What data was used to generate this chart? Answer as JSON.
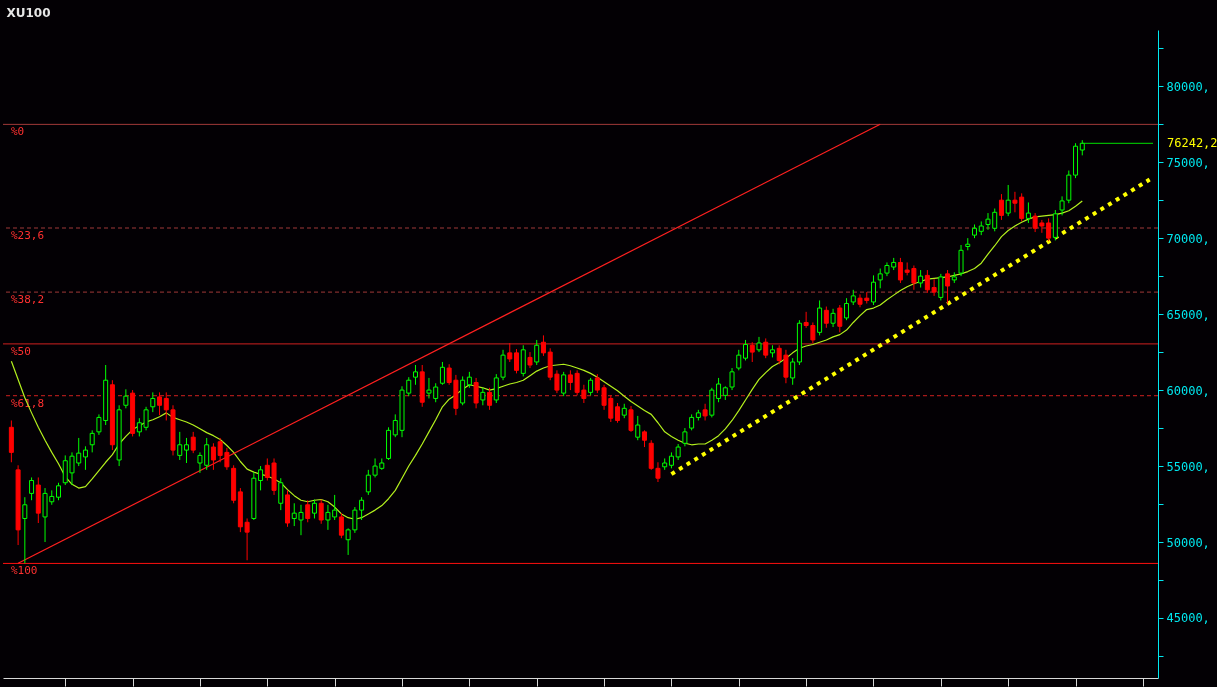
{
  "chart_data": {
    "type": "candlestick",
    "title": "XU100",
    "categories": [
      null,
      null,
      null,
      null,
      null,
      null,
      null,
      null,
      null,
      null,
      null,
      null,
      null,
      null,
      null,
      null,
      null,
      null,
      null,
      null,
      null,
      null,
      null,
      null,
      null,
      null,
      null,
      null,
      null,
      null,
      null,
      null,
      null,
      null,
      null,
      null,
      null,
      null,
      null,
      null,
      null,
      null,
      null,
      null,
      null,
      null,
      null,
      null,
      null,
      null,
      null,
      null,
      null,
      null,
      null,
      null,
      null,
      null,
      null,
      null,
      null,
      null,
      null,
      null,
      null,
      null,
      null,
      null,
      null,
      null,
      null,
      null,
      null,
      null,
      null,
      null,
      null,
      null,
      null,
      null,
      null,
      null,
      null,
      null,
      null,
      null,
      null,
      null,
      null,
      null,
      null,
      null,
      null,
      null,
      null,
      null,
      null,
      null,
      null,
      null,
      null,
      null,
      null,
      null,
      null,
      null,
      null,
      null,
      null,
      null,
      null,
      null,
      null,
      null,
      null,
      null,
      null,
      null,
      null,
      null,
      null,
      null,
      null,
      null,
      null,
      null,
      null,
      null,
      null,
      null,
      null,
      null,
      null,
      null,
      null,
      null,
      null,
      null,
      null,
      null,
      null,
      null,
      null,
      null,
      null,
      null,
      null,
      null,
      null,
      null,
      null,
      null,
      null,
      null,
      null,
      null,
      null,
      null,
      null,
      null,
      null,
      null,
      null,
      null,
      null,
      null,
      null,
      null,
      null,
      null
    ],
    "ohlc": [
      [
        57550,
        58000,
        55250,
        55900
      ],
      [
        54750,
        55050,
        49800,
        50800
      ],
      [
        51550,
        52950,
        48600,
        52450
      ],
      [
        53200,
        54250,
        52750,
        54050
      ],
      [
        53750,
        54250,
        51250,
        51900
      ],
      [
        51650,
        53550,
        50000,
        53200
      ],
      [
        52650,
        53400,
        52450,
        53000
      ],
      [
        52950,
        53900,
        52750,
        53700
      ],
      [
        53900,
        55700,
        53750,
        55350
      ],
      [
        54550,
        55900,
        53750,
        55650
      ],
      [
        55200,
        56850,
        55000,
        55850
      ],
      [
        55600,
        56300,
        54750,
        56050
      ],
      [
        56400,
        57350,
        55900,
        57150
      ],
      [
        57250,
        58400,
        57050,
        58200
      ],
      [
        58000,
        61650,
        57700,
        60650
      ],
      [
        60350,
        60650,
        56050,
        56400
      ],
      [
        55400,
        59000,
        55000,
        58700
      ],
      [
        59000,
        60050,
        58800,
        59600
      ],
      [
        59800,
        60000,
        56950,
        57150
      ],
      [
        57250,
        58150,
        56950,
        57850
      ],
      [
        57550,
        58900,
        57350,
        58700
      ],
      [
        58900,
        59850,
        58550,
        59450
      ],
      [
        59550,
        59850,
        58350,
        59000
      ],
      [
        59450,
        59850,
        58000,
        58700
      ],
      [
        58700,
        59000,
        55700,
        56050
      ],
      [
        55700,
        57250,
        55400,
        56400
      ],
      [
        56050,
        56850,
        55200,
        56400
      ],
      [
        56900,
        57250,
        55850,
        56050
      ],
      [
        55200,
        55900,
        54550,
        55700
      ],
      [
        55050,
        56850,
        54750,
        56400
      ],
      [
        56250,
        56500,
        54750,
        55400
      ],
      [
        56600,
        56850,
        55250,
        55700
      ],
      [
        55900,
        56200,
        54750,
        54950
      ],
      [
        54850,
        55050,
        52550,
        52750
      ],
      [
        53300,
        53550,
        50650,
        51000
      ],
      [
        51300,
        51550,
        48800,
        50650
      ],
      [
        51550,
        54600,
        51450,
        54200
      ],
      [
        54050,
        55000,
        53400,
        54750
      ],
      [
        55050,
        55500,
        54050,
        54250
      ],
      [
        55200,
        55500,
        53100,
        53400
      ],
      [
        52550,
        54200,
        52100,
        53900
      ],
      [
        53100,
        53400,
        51000,
        51250
      ],
      [
        51550,
        52550,
        51050,
        51900
      ],
      [
        51450,
        52450,
        50450,
        51950
      ],
      [
        52450,
        52750,
        51300,
        51550
      ],
      [
        51900,
        52800,
        51550,
        52550
      ],
      [
        52550,
        52800,
        51200,
        51450
      ],
      [
        51450,
        52450,
        50800,
        51950
      ],
      [
        51650,
        53100,
        51450,
        52100
      ],
      [
        51650,
        51900,
        50250,
        50450
      ],
      [
        50150,
        50900,
        49150,
        50800
      ],
      [
        50800,
        52300,
        50600,
        52100
      ],
      [
        52100,
        52950,
        51450,
        52750
      ],
      [
        53300,
        54750,
        53100,
        54400
      ],
      [
        54400,
        55500,
        54250,
        55000
      ],
      [
        54850,
        55500,
        54750,
        55200
      ],
      [
        55500,
        57550,
        55400,
        57350
      ],
      [
        57050,
        58400,
        56900,
        58000
      ],
      [
        57350,
        60250,
        56900,
        60000
      ],
      [
        59800,
        60850,
        59600,
        60650
      ],
      [
        60850,
        61650,
        60350,
        61200
      ],
      [
        61200,
        61650,
        58900,
        59200
      ],
      [
        59800,
        60800,
        59450,
        60000
      ],
      [
        59450,
        60450,
        59200,
        60200
      ],
      [
        60450,
        61850,
        60350,
        61500
      ],
      [
        61450,
        61700,
        60350,
        60500
      ],
      [
        60650,
        61000,
        58350,
        58800
      ],
      [
        59150,
        60900,
        59000,
        60650
      ],
      [
        60350,
        61200,
        60150,
        60850
      ],
      [
        60500,
        60800,
        58800,
        59150
      ],
      [
        59350,
        60150,
        59000,
        59850
      ],
      [
        59850,
        60150,
        58700,
        59000
      ],
      [
        59350,
        61050,
        59150,
        60800
      ],
      [
        60850,
        62650,
        60650,
        62300
      ],
      [
        62450,
        63100,
        61850,
        62050
      ],
      [
        62450,
        62700,
        61100,
        61300
      ],
      [
        61100,
        62950,
        60900,
        62650
      ],
      [
        62150,
        62500,
        61450,
        61650
      ],
      [
        61850,
        63300,
        61650,
        62950
      ],
      [
        63150,
        63600,
        62250,
        62450
      ],
      [
        62500,
        62750,
        60650,
        60850
      ],
      [
        61050,
        61300,
        59800,
        60000
      ],
      [
        59800,
        61200,
        59600,
        61000
      ],
      [
        61000,
        61300,
        60000,
        60500
      ],
      [
        61100,
        61300,
        59650,
        59850
      ],
      [
        60000,
        60350,
        59150,
        59450
      ],
      [
        59850,
        60800,
        59650,
        60650
      ],
      [
        60800,
        61050,
        59800,
        60000
      ],
      [
        60150,
        60350,
        58700,
        59000
      ],
      [
        59450,
        59650,
        57900,
        58150
      ],
      [
        58900,
        59150,
        57850,
        58000
      ],
      [
        58350,
        59100,
        58150,
        58800
      ],
      [
        58700,
        58950,
        57250,
        57350
      ],
      [
        56900,
        58300,
        56700,
        57700
      ],
      [
        57250,
        57350,
        56250,
        56700
      ],
      [
        56500,
        56700,
        54750,
        54850
      ],
      [
        54850,
        55250,
        53950,
        54200
      ],
      [
        54950,
        55500,
        54750,
        55200
      ],
      [
        55050,
        55900,
        54850,
        55650
      ],
      [
        55600,
        56450,
        55400,
        56250
      ],
      [
        56500,
        57500,
        56300,
        57250
      ],
      [
        57500,
        58400,
        57350,
        58200
      ],
      [
        58200,
        58700,
        58000,
        58500
      ],
      [
        58700,
        59100,
        58000,
        58300
      ],
      [
        58350,
        60150,
        58200,
        60000
      ],
      [
        59450,
        60800,
        59200,
        60400
      ],
      [
        59650,
        60250,
        59350,
        60150
      ],
      [
        60200,
        61450,
        60000,
        61200
      ],
      [
        61450,
        62650,
        61300,
        62300
      ],
      [
        62100,
        63300,
        61950,
        63000
      ],
      [
        62950,
        63150,
        61850,
        62500
      ],
      [
        62650,
        63500,
        62500,
        63100
      ],
      [
        63150,
        63400,
        62100,
        62300
      ],
      [
        62450,
        62950,
        62150,
        62650
      ],
      [
        62750,
        62950,
        61700,
        61950
      ],
      [
        62300,
        62650,
        60450,
        60850
      ],
      [
        60800,
        62100,
        60350,
        61850
      ],
      [
        61850,
        64600,
        61650,
        64400
      ],
      [
        64450,
        65150,
        64100,
        64250
      ],
      [
        64250,
        64450,
        63100,
        63300
      ],
      [
        63800,
        65900,
        63600,
        65400
      ],
      [
        65250,
        65500,
        64100,
        64400
      ],
      [
        64400,
        65350,
        64150,
        65050
      ],
      [
        65400,
        65600,
        63800,
        64200
      ],
      [
        64750,
        66050,
        64600,
        65700
      ],
      [
        65800,
        66600,
        65600,
        66200
      ],
      [
        66050,
        66300,
        65450,
        65650
      ],
      [
        66050,
        66450,
        65700,
        65900
      ],
      [
        65800,
        67550,
        65600,
        67100
      ],
      [
        67250,
        68000,
        66700,
        67650
      ],
      [
        67700,
        68400,
        67500,
        68200
      ],
      [
        68100,
        68700,
        67900,
        68400
      ],
      [
        68400,
        68700,
        67050,
        67250
      ],
      [
        67900,
        68400,
        67550,
        67750
      ],
      [
        68000,
        68200,
        66600,
        67050
      ],
      [
        67050,
        67900,
        66750,
        67500
      ],
      [
        67550,
        67900,
        66400,
        66600
      ],
      [
        66750,
        67300,
        66200,
        66450
      ],
      [
        66100,
        67650,
        65900,
        67450
      ],
      [
        67650,
        67900,
        65700,
        66850
      ],
      [
        67250,
        67750,
        67050,
        67450
      ],
      [
        67700,
        69550,
        67500,
        69200
      ],
      [
        69450,
        70000,
        69200,
        69600
      ],
      [
        70200,
        70900,
        70000,
        70650
      ],
      [
        70450,
        71100,
        70200,
        70800
      ],
      [
        70900,
        71650,
        70550,
        71250
      ],
      [
        70650,
        71950,
        70450,
        71700
      ],
      [
        72500,
        72900,
        71200,
        71500
      ],
      [
        71650,
        73500,
        71450,
        72500
      ],
      [
        72500,
        73050,
        71700,
        72300
      ],
      [
        72700,
        72950,
        71100,
        71300
      ],
      [
        71300,
        72350,
        71000,
        71650
      ],
      [
        71450,
        71650,
        70400,
        70650
      ],
      [
        71000,
        71200,
        70350,
        70800
      ],
      [
        71000,
        71300,
        69800,
        70000
      ],
      [
        70050,
        71850,
        69850,
        71600
      ],
      [
        71850,
        72750,
        71500,
        72450
      ],
      [
        72500,
        74450,
        72300,
        74150
      ],
      [
        74150,
        76250,
        73950,
        76050
      ],
      [
        75800,
        76450,
        75450,
        76242.2
      ],
      null,
      null,
      null,
      null,
      null,
      null,
      null,
      null,
      null,
      null
    ],
    "colors": [
      "#ff0000",
      "#ff0000",
      "#00ff00",
      "#00ff00",
      "#ff0000",
      "#00ff00",
      "#00ff00",
      "#00ff00",
      "#00ff00",
      "#00ff00",
      "#00ff00",
      "#00ff00",
      "#00ff00",
      "#00ff00",
      "#00ff00",
      "#ff0000",
      "#00ff00",
      "#00ff00",
      "#ff0000",
      "#00ff00",
      "#00ff00",
      "#00ff00",
      "#ff0000",
      "#ff0000",
      "#ff0000",
      "#00ff00",
      "#00ff00",
      "#ff0000",
      "#00ff00",
      "#00ff00",
      "#ff0000",
      "#ff0000",
      "#ff0000",
      "#ff0000",
      "#ff0000",
      "#ff0000",
      "#00ff00",
      "#00ff00",
      "#ff0000",
      "#ff0000",
      "#00ff00",
      "#ff0000",
      "#00ff00",
      "#00ff00",
      "#ff0000",
      "#00ff00",
      "#ff0000",
      "#00ff00",
      "#00ff00",
      "#ff0000",
      "#00ff00",
      "#00ff00",
      "#00ff00",
      "#00ff00",
      "#00ff00",
      "#00ff00",
      "#00ff00",
      "#00ff00",
      "#00ff00",
      "#00ff00",
      "#00ff00",
      "#ff0000",
      "#00ff00",
      "#00ff00",
      "#00ff00",
      "#ff0000",
      "#ff0000",
      "#00ff00",
      "#00ff00",
      "#ff0000",
      "#00ff00",
      "#ff0000",
      "#00ff00",
      "#00ff00",
      "#ff0000",
      "#ff0000",
      "#00ff00",
      "#ff0000",
      "#00ff00",
      "#ff0000",
      "#ff0000",
      "#ff0000",
      "#00ff00",
      "#ff0000",
      "#ff0000",
      "#ff0000",
      "#00ff00",
      "#ff0000",
      "#ff0000",
      "#ff0000",
      "#ff0000",
      "#00ff00",
      "#ff0000",
      "#00ff00",
      "#ff0000",
      "#ff0000",
      "#ff0000",
      "#00ff00",
      "#00ff00",
      "#00ff00",
      "#00ff00",
      "#00ff00",
      "#00ff00",
      "#ff0000",
      "#00ff00",
      "#00ff00",
      "#00ff00",
      "#00ff00",
      "#00ff00",
      "#00ff00",
      "#ff0000",
      "#00ff00",
      "#ff0000",
      "#00ff00",
      "#ff0000",
      "#ff0000",
      "#00ff00",
      "#00ff00",
      "#ff0000",
      "#ff0000",
      "#00ff00",
      "#ff0000",
      "#00ff00",
      "#ff0000",
      "#00ff00",
      "#00ff00",
      "#ff0000",
      "#ff0000",
      "#00ff00",
      "#00ff00",
      "#00ff00",
      "#00ff00",
      "#ff0000",
      "#ff0000",
      "#ff0000",
      "#00ff00",
      "#ff0000",
      "#ff0000",
      "#00ff00",
      "#ff0000",
      "#00ff00",
      "#00ff00",
      "#00ff00",
      "#00ff00",
      "#00ff00",
      "#00ff00",
      "#00ff00",
      "#ff0000",
      "#00ff00",
      "#ff0000",
      "#ff0000",
      "#00ff00",
      "#ff0000",
      "#ff0000",
      "#ff0000",
      "#00ff00",
      "#00ff00",
      "#00ff00",
      "#00ff00",
      "#00ff00",
      null,
      null,
      null,
      null,
      null,
      null,
      null,
      null,
      null,
      null
    ],
    "series": [
      {
        "type": "line",
        "color": "#b4f01e",
        "values": [
          61900,
          60700,
          59500,
          58500,
          57550,
          56700,
          55900,
          55150,
          54300,
          53800,
          53550,
          53650,
          54150,
          54700,
          55250,
          55750,
          56450,
          56950,
          57400,
          57650,
          57900,
          58050,
          58250,
          58500,
          58200,
          58050,
          57900,
          57700,
          57450,
          57200,
          57000,
          56750,
          56350,
          55900,
          55300,
          54800,
          54600,
          54450,
          54350,
          54150,
          53900,
          53450,
          53050,
          52750,
          52650,
          52750,
          52800,
          52650,
          52300,
          51850,
          51600,
          51500,
          51600,
          51850,
          52100,
          52400,
          52850,
          53400,
          54200,
          55000,
          55700,
          56450,
          57250,
          58050,
          58900,
          59400,
          59700,
          60050,
          60350,
          60250,
          60150,
          60000,
          60100,
          60250,
          60400,
          60500,
          60650,
          60950,
          61250,
          61450,
          61600,
          61650,
          61700,
          61600,
          61450,
          61300,
          61100,
          60850,
          60550,
          60250,
          59950,
          59600,
          59250,
          58950,
          58650,
          58400,
          57850,
          57250,
          56950,
          56700,
          56500,
          56400,
          56450,
          56450,
          56700,
          57000,
          57450,
          58000,
          58650,
          59350,
          60050,
          60700,
          61150,
          61550,
          61800,
          62100,
          62450,
          62750,
          62900,
          63000,
          63150,
          63300,
          63500,
          63650,
          63950,
          64450,
          64900,
          65300,
          65400,
          65600,
          65950,
          66250,
          66550,
          66800,
          67000,
          67150,
          67300,
          67350,
          67400,
          67450,
          67550,
          67650,
          67800,
          68000,
          68350,
          68950,
          69500,
          70100,
          70500,
          70800,
          71050,
          71250,
          71400,
          71450,
          71500,
          71550,
          71650,
          71800,
          72100,
          72450,
          null,
          null,
          null,
          null,
          null,
          null,
          null,
          null,
          null,
          null
        ]
      },
      {
        "type": "line",
        "color": "#ff2020",
        "values": [
          null,
          48600,
          null,
          null,
          null,
          null,
          null,
          null,
          null,
          null,
          null,
          null,
          null,
          null,
          null,
          null,
          null,
          null,
          null,
          null,
          null,
          null,
          null,
          null,
          null,
          null,
          null,
          null,
          null,
          null,
          null,
          null,
          null,
          null,
          null,
          null,
          null,
          null,
          null,
          null,
          null,
          null,
          null,
          null,
          null,
          null,
          null,
          null,
          null,
          null,
          null,
          null,
          null,
          null,
          null,
          null,
          null,
          null,
          null,
          null,
          null,
          null,
          null,
          null,
          null,
          null,
          null,
          null,
          null,
          null,
          null,
          null,
          null,
          null,
          null,
          null,
          null,
          null,
          null,
          null,
          null,
          null,
          null,
          null,
          null,
          null,
          null,
          null,
          null,
          null,
          null,
          null,
          null,
          null,
          null,
          null,
          null,
          null,
          null,
          null,
          null,
          null,
          null,
          null,
          null,
          null,
          null,
          null,
          null,
          null,
          null,
          null,
          null,
          null,
          null,
          null,
          null,
          null,
          null,
          null,
          null,
          null,
          null,
          null,
          null,
          null,
          null,
          null,
          null,
          77500,
          null,
          null,
          null,
          null,
          null,
          null,
          null,
          null,
          null,
          null,
          null,
          null,
          null,
          null,
          null,
          null,
          null,
          null,
          null,
          null,
          null,
          null,
          null,
          null,
          null,
          null,
          null,
          null,
          null,
          null,
          null,
          null,
          null,
          null,
          null,
          null,
          null,
          null,
          null,
          null
        ]
      },
      {
        "type": "line",
        "color": "#ffff00",
        "line_style": "dotted",
        "values": [
          null,
          null,
          null,
          null,
          null,
          null,
          null,
          null,
          null,
          null,
          null,
          null,
          null,
          null,
          null,
          null,
          null,
          null,
          null,
          null,
          null,
          null,
          null,
          null,
          null,
          null,
          null,
          null,
          null,
          null,
          null,
          null,
          null,
          null,
          null,
          null,
          null,
          null,
          null,
          null,
          null,
          null,
          null,
          null,
          null,
          null,
          null,
          null,
          null,
          null,
          null,
          null,
          null,
          null,
          null,
          null,
          null,
          null,
          null,
          null,
          null,
          null,
          null,
          null,
          null,
          null,
          null,
          null,
          null,
          null,
          null,
          null,
          null,
          null,
          null,
          null,
          null,
          null,
          null,
          null,
          null,
          null,
          null,
          null,
          null,
          null,
          null,
          null,
          null,
          null,
          null,
          null,
          null,
          null,
          null,
          null,
          null,
          null,
          54470,
          null,
          null,
          null,
          null,
          null,
          null,
          null,
          null,
          null,
          null,
          null,
          null,
          null,
          null,
          null,
          null,
          null,
          null,
          null,
          null,
          null,
          null,
          null,
          null,
          null,
          null,
          null,
          null,
          null,
          null,
          null,
          null,
          null,
          null,
          null,
          null,
          null,
          null,
          null,
          null,
          null,
          null,
          null,
          null,
          null,
          null,
          null,
          null,
          null,
          null,
          null,
          null,
          null,
          null,
          null,
          null,
          null,
          null,
          null,
          null,
          null,
          null,
          null,
          null,
          null,
          null,
          null,
          null,
          null,
          null,
          73860
        ]
      }
    ],
    "ref_lines": [
      {
        "axis": "y2",
        "value": 0,
        "label": "%0",
        "color": "#a03838",
        "line_style": "solid"
      },
      {
        "axis": "y2",
        "value": 23.6,
        "label": "%23,6",
        "color": "#a03838",
        "line_style": "dashed"
      },
      {
        "axis": "y2",
        "value": 38.2,
        "label": "%38,2",
        "color": "#a03838",
        "line_style": "dashed"
      },
      {
        "axis": "y2",
        "value": 50,
        "label": "%50",
        "color": "#d02020",
        "line_style": "solid"
      },
      {
        "axis": "y2",
        "value": 61.8,
        "label": "%61,8",
        "color": "#d02020",
        "line_style": "dashed"
      },
      {
        "axis": "y2",
        "value": 100,
        "label": "%100",
        "color": "#ff1010",
        "line_style": "solid"
      }
    ],
    "annotations": [
      "76242,2"
    ],
    "ylim": [
      41050,
      83700
    ],
    "yticks": [
      {
        "value": 42500,
        "label": null
      },
      {
        "value": 45000,
        "label": "45000,"
      },
      {
        "value": 47500,
        "label": null
      },
      {
        "value": 50000,
        "label": "50000,"
      },
      {
        "value": 52500,
        "label": null
      },
      {
        "value": 55000,
        "label": "55000,"
      },
      {
        "value": 57500,
        "label": null
      },
      {
        "value": 60000,
        "label": "60000,"
      },
      {
        "value": 62500,
        "label": null
      },
      {
        "value": 65000,
        "label": "65000,"
      },
      {
        "value": 67500,
        "label": null
      },
      {
        "value": 70000,
        "label": "70000,"
      },
      {
        "value": 72500,
        "label": null
      },
      {
        "value": 75000,
        "label": "75000,"
      },
      {
        "value": 77500,
        "label": null
      },
      {
        "value": 80000,
        "label": "80000,"
      },
      {
        "value": 82500,
        "label": null
      }
    ],
    "y2lim": [
      126.1,
      -21.5
    ],
    "tick_labels": "y"
  }
}
